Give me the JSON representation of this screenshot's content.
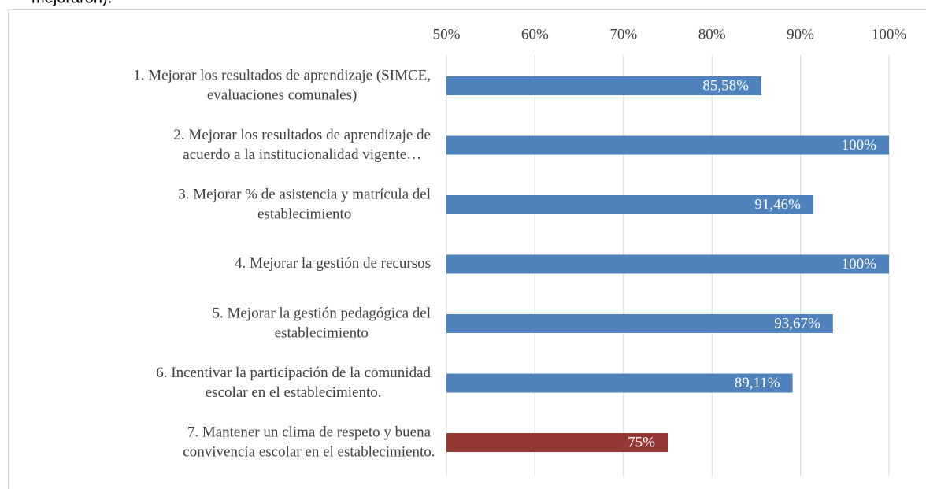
{
  "caption": "mejoraron).",
  "chart_data": {
    "type": "bar",
    "orientation": "horizontal",
    "categories": [
      [
        "1.    Mejorar los resultados de aprendizaje (SIMCE,",
        "evaluaciones comunales)"
      ],
      [
        "2.    Mejorar los resultados de aprendizaje de",
        "acuerdo a la institucionalidad vigente…"
      ],
      [
        "3.    Mejorar % de asistencia y matrícula del",
        "establecimiento"
      ],
      [
        "4.    Mejorar la gestión de recursos"
      ],
      [
        "5.    Mejorar la gestión pedagógica del",
        "establecimiento"
      ],
      [
        "6.    Incentivar la participación de la comunidad",
        "escolar en el establecimiento."
      ],
      [
        "7.    Mantener un clima de respeto y buena",
        "convivencia escolar en el establecimiento."
      ]
    ],
    "values": [
      85.58,
      100,
      91.46,
      100,
      93.67,
      89.11,
      75
    ],
    "value_labels": [
      "85,58%",
      "100%",
      "91,46%",
      "100%",
      "93,67%",
      "89,11%",
      "75%"
    ],
    "colors": [
      "#4f81bd",
      "#4f81bd",
      "#4f81bd",
      "#4f81bd",
      "#4f81bd",
      "#4f81bd",
      "#953735"
    ],
    "xlim": [
      50,
      100
    ],
    "xticks": [
      {
        "value": 50,
        "label": "50%"
      },
      {
        "value": 60,
        "label": "60%"
      },
      {
        "value": 70,
        "label": "70%"
      },
      {
        "value": 80,
        "label": "80%"
      },
      {
        "value": 90,
        "label": "90%"
      },
      {
        "value": 100,
        "label": "100%"
      }
    ],
    "grid": true
  }
}
